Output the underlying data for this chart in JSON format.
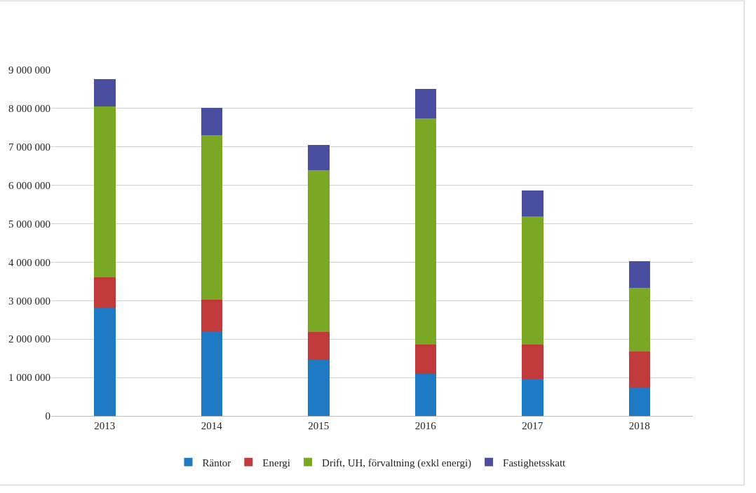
{
  "chart_data": {
    "type": "bar",
    "stacked": true,
    "categories": [
      "2013",
      "2014",
      "2015",
      "2016",
      "2017",
      "2018"
    ],
    "series": [
      {
        "name": "Räntor",
        "color": "#1f7ac4",
        "values": [
          2810000,
          2200000,
          1460000,
          1100000,
          970000,
          740000
        ]
      },
      {
        "name": "Energi",
        "color": "#c0393b",
        "values": [
          790000,
          820000,
          730000,
          750000,
          880000,
          930000
        ]
      },
      {
        "name": "Drift, UH, förvaltning (exkl energi)",
        "color": "#7aa824",
        "values": [
          4460000,
          4290000,
          4200000,
          5900000,
          3340000,
          1660000
        ]
      },
      {
        "name": "Fastighetsskatt",
        "color": "#4b4ea0",
        "values": [
          700000,
          700000,
          660000,
          750000,
          670000,
          690000
        ]
      }
    ],
    "ylim": [
      0,
      9000000
    ],
    "yticks": [
      0,
      {
        "value": 1000000,
        "label": "1 000 000"
      },
      {
        "value": 2000000,
        "label": "2 000 000"
      },
      {
        "value": 3000000,
        "label": "3 000 000"
      },
      {
        "value": 4000000,
        "label": "4 000 000"
      },
      {
        "value": 5000000,
        "label": "5 000 000"
      },
      {
        "value": 6000000,
        "label": "6 000 000"
      },
      {
        "value": 7000000,
        "label": "7 000 000"
      },
      {
        "value": 8000000,
        "label": "8 000 000"
      },
      {
        "value": 9000000,
        "label": "9 000 000"
      }
    ],
    "grid": "y",
    "legend": "bottom"
  }
}
